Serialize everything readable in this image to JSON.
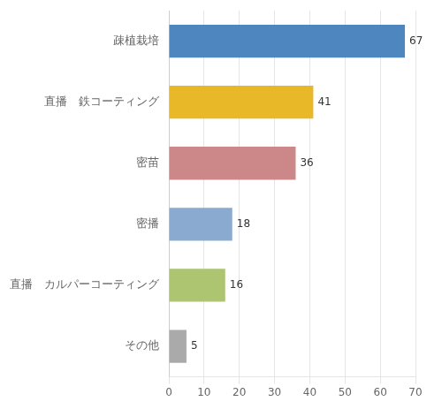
{
  "chart_data": {
    "type": "bar",
    "orientation": "horizontal",
    "categories": [
      "疎植栽培",
      "直播　鉄コーティング",
      "密苗",
      "密播",
      "直播　カルパーコーティング",
      "その他"
    ],
    "values": [
      67,
      41,
      36,
      18,
      16,
      5
    ],
    "colors": [
      "#4e86c0",
      "#e8b828",
      "#cc8888",
      "#8aaad0",
      "#adc470",
      "#aaaaaa"
    ],
    "xlim": [
      0,
      70
    ],
    "xticks": [
      0,
      10,
      20,
      30,
      40,
      50,
      60,
      70
    ],
    "grid": true,
    "data_labels": true
  }
}
